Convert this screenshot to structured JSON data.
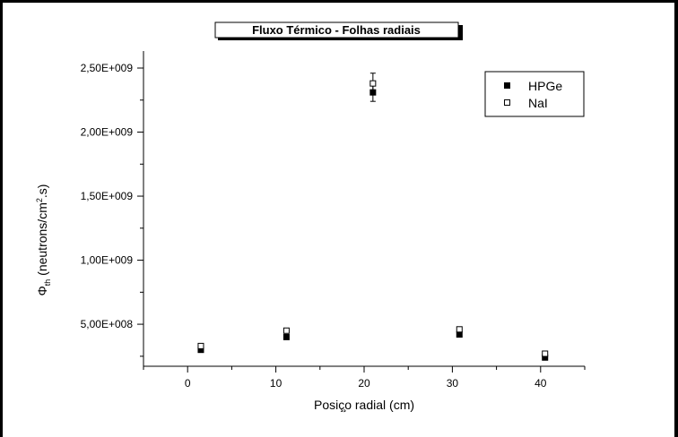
{
  "chart_data": {
    "type": "scatter",
    "title": "Fluxo Térmico - Folhas radiais",
    "xlabel": "Posiç̧o radial (cm)",
    "ylabel": {
      "phi": "Φ",
      "sub": "th",
      "main": " (neutrons/cm",
      "sup": "2",
      "tail": ".s)"
    },
    "xlim": [
      -5,
      45
    ],
    "ylim": [
      0,
      2600000000.0
    ],
    "x_ticks": [
      0,
      10,
      20,
      30,
      40
    ],
    "x_tick_labels": [
      "0",
      "10",
      "20",
      "30",
      "40"
    ],
    "y_ticks": [
      500000000.0,
      1000000000.0,
      1500000000.0,
      2000000000.0,
      2500000000.0
    ],
    "y_tick_labels": [
      "5,00E+008",
      "1,00E+009",
      "1,50E+009",
      "2,00E+009",
      "2,50E+009"
    ],
    "legend_position": "top-right",
    "series": [
      {
        "name": "HPGe",
        "marker": "filled-square",
        "x": [
          1.5,
          11.2,
          21.0,
          30.8,
          40.5
        ],
        "y": [
          300000000.0,
          400000000.0,
          2310000000.0,
          420000000.0,
          240000000.0
        ],
        "err": [
          0,
          0,
          70000000.0,
          0,
          0
        ]
      },
      {
        "name": "NaI",
        "marker": "open-square",
        "x": [
          1.5,
          11.2,
          21.0,
          30.8,
          40.5
        ],
        "y": [
          330000000.0,
          450000000.0,
          2380000000.0,
          460000000.0,
          270000000.0
        ],
        "err": [
          0,
          0,
          80000000.0,
          0,
          0
        ]
      }
    ],
    "colors": {
      "marker": "#000000",
      "axis": "#000000"
    }
  }
}
